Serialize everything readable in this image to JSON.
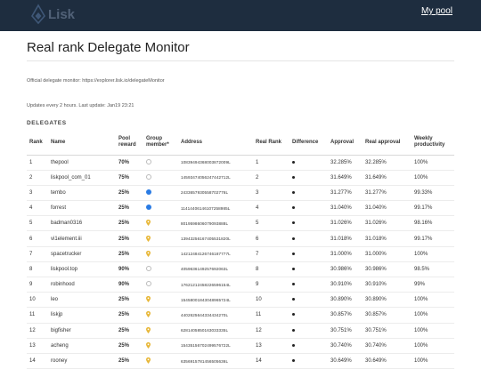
{
  "header": {
    "logo_text": "Lisk",
    "nav_link": "My pool",
    "colors": {
      "bar": "#1e2d3f"
    }
  },
  "page": {
    "title": "Real rank Delegate Monitor",
    "official_text": "Official delegate monitor: https://explorer.lisk.io/delegateMonitor",
    "update_text": "Updates every 2 hours. Last update: Jan19 23:21",
    "section_title": "DELEGATES"
  },
  "table": {
    "headers": {
      "rank": "Rank",
      "name": "Name",
      "pool_reward": "Pool reward",
      "group_member": "Group member*",
      "address": "Address",
      "real_rank": "Real Rank",
      "difference": "Difference",
      "approval": "Approval",
      "real_approval": "Real approval",
      "weekly_productivity": "Weekly productivity"
    },
    "rows": [
      {
        "rank": "1",
        "name": "thepool",
        "reward": "70%",
        "group": "empty",
        "address": "10839494368003872009L",
        "real_rank": "1",
        "approval": "32.285%",
        "real_approval": "32.285%",
        "productivity": "100%"
      },
      {
        "rank": "2",
        "name": "liskpool_com_01",
        "reward": "75%",
        "group": "empty",
        "address": "14593474056247442712L",
        "real_rank": "2",
        "approval": "31.649%",
        "real_approval": "31.649%",
        "productivity": "100%"
      },
      {
        "rank": "3",
        "name": "tembo",
        "reward": "25%",
        "group": "blue",
        "address": "2433657930558702776L",
        "real_rank": "3",
        "approval": "31.277%",
        "real_approval": "31.277%",
        "productivity": "99.33%"
      },
      {
        "rank": "4",
        "name": "forrest",
        "reward": "25%",
        "group": "blue",
        "address": "11414406146107258985L",
        "real_rank": "4",
        "approval": "31.040%",
        "real_approval": "31.040%",
        "productivity": "99.17%"
      },
      {
        "rank": "5",
        "name": "badman0316",
        "reward": "25%",
        "group": "pin",
        "address": "8019598606079093888L",
        "real_rank": "5",
        "approval": "31.026%",
        "real_approval": "31.026%",
        "productivity": "98.16%"
      },
      {
        "rank": "6",
        "name": "vi1element.iii",
        "reward": "25%",
        "group": "pin",
        "address": "13943256167405531820L",
        "real_rank": "6",
        "approval": "31.018%",
        "real_approval": "31.018%",
        "productivity": "99.17%"
      },
      {
        "rank": "7",
        "name": "spacetrucker",
        "reward": "25%",
        "group": "pin",
        "address": "14212484126746187777L",
        "real_rank": "7",
        "approval": "31.000%",
        "real_approval": "31.000%",
        "productivity": "100%"
      },
      {
        "rank": "8",
        "name": "liskpool.top",
        "reward": "90%",
        "group": "empty",
        "address": "4059636149257692063L",
        "real_rank": "8",
        "approval": "30.986%",
        "real_approval": "30.986%",
        "productivity": "98.5%"
      },
      {
        "rank": "9",
        "name": "robinhood",
        "reward": "90%",
        "group": "empty",
        "address": "17621212458226596154L",
        "real_rank": "9",
        "approval": "30.910%",
        "real_approval": "30.910%",
        "productivity": "99%"
      },
      {
        "rank": "10",
        "name": "leo",
        "reward": "25%",
        "group": "pin",
        "address": "15458001843048965724L",
        "real_rank": "10",
        "approval": "30.890%",
        "real_approval": "30.890%",
        "productivity": "100%"
      },
      {
        "rank": "11",
        "name": "liskjp",
        "reward": "25%",
        "group": "pin",
        "address": "4402625644334434270L",
        "real_rank": "11",
        "approval": "30.857%",
        "real_approval": "30.857%",
        "productivity": "100%"
      },
      {
        "rank": "12",
        "name": "bigfisher",
        "reward": "25%",
        "group": "pin",
        "address": "6281405850163033335L",
        "real_rank": "12",
        "approval": "30.751%",
        "real_approval": "30.751%",
        "productivity": "100%"
      },
      {
        "rank": "13",
        "name": "acheng",
        "reward": "25%",
        "group": "pin",
        "address": "15435156702499576722L",
        "real_rank": "13",
        "approval": "30.740%",
        "real_approval": "30.740%",
        "productivity": "100%"
      },
      {
        "rank": "14",
        "name": "rooney",
        "reward": "25%",
        "group": "pin",
        "address": "6356915781456505636L",
        "real_rank": "14",
        "approval": "30.649%",
        "real_approval": "30.649%",
        "productivity": "100%"
      }
    ]
  },
  "icons": {
    "empty": "empty-circle-icon",
    "blue": "blue-dot-icon",
    "pin": "yellow-pin-icon",
    "difference": "dot-icon"
  }
}
